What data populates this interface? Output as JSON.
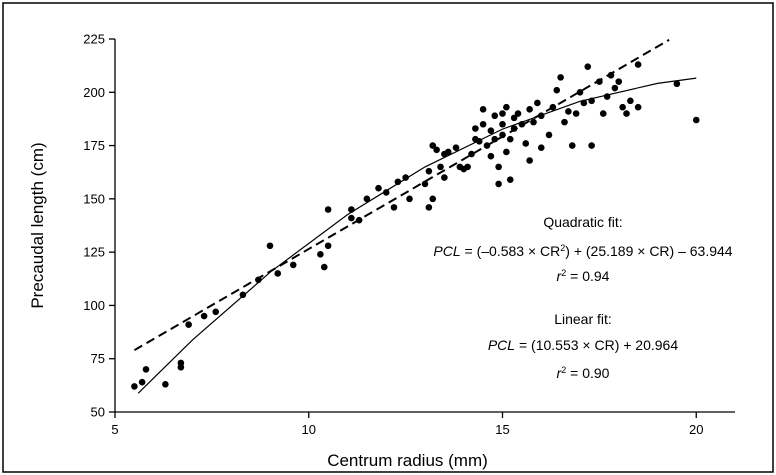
{
  "chart_data": {
    "type": "scatter",
    "x_label": "Centrum radius (mm)",
    "y_label": "Precaudal length (cm)",
    "xlim": [
      5,
      21
    ],
    "xticks": [
      5,
      10,
      15,
      20
    ],
    "ylim": [
      50,
      225
    ],
    "yticks": [
      50,
      75,
      100,
      125,
      150,
      175,
      200,
      225
    ],
    "series": [
      {
        "style": "points",
        "color": "#000000",
        "x": [
          5.5,
          5.7,
          5.8,
          6.3,
          6.7,
          6.7,
          6.9,
          7.3,
          7.6,
          8.3,
          8.7,
          9.0,
          9.2,
          9.6,
          10.3,
          10.4,
          10.5,
          10.5,
          11.1,
          11.1,
          11.3,
          11.5,
          11.8,
          12.0,
          12.2,
          12.3,
          12.5,
          12.6,
          13.0,
          13.1,
          13.1,
          13.2,
          13.2,
          13.3,
          13.4,
          13.5,
          13.5,
          13.6,
          13.8,
          13.9,
          14.0,
          14.1,
          14.2,
          14.3,
          14.3,
          14.4,
          14.5,
          14.5,
          14.6,
          14.7,
          14.7,
          14.8,
          14.8,
          14.9,
          14.9,
          15.0,
          15.0,
          15.0,
          15.1,
          15.1,
          15.2,
          15.2,
          15.3,
          15.3,
          15.4,
          15.5,
          15.6,
          15.7,
          15.7,
          15.8,
          15.9,
          16.0,
          16.0,
          16.2,
          16.3,
          16.4,
          16.5,
          16.6,
          16.7,
          16.8,
          16.9,
          17.0,
          17.1,
          17.2,
          17.3,
          17.3,
          17.5,
          17.6,
          17.7,
          17.8,
          17.9,
          18.0,
          18.1,
          18.2,
          18.3,
          18.5,
          18.5,
          19.5,
          20.0
        ],
        "values": [
          62,
          64,
          70,
          63,
          73,
          71,
          91,
          95,
          97,
          105,
          112,
          128,
          115,
          119,
          124,
          118,
          145,
          128,
          145,
          141,
          140,
          150,
          155,
          153,
          146,
          158,
          160,
          150,
          157,
          163,
          146,
          150,
          175,
          173,
          165,
          160,
          171,
          172,
          174,
          165,
          164,
          165,
          171,
          183,
          178,
          177,
          192,
          185,
          175,
          170,
          182,
          189,
          178,
          165,
          157,
          190,
          185,
          180,
          172,
          193,
          178,
          159,
          188,
          183,
          190,
          185,
          176,
          192,
          168,
          186,
          195,
          189,
          174,
          180,
          193,
          201,
          207,
          186,
          191,
          175,
          190,
          200,
          195,
          212,
          196,
          175,
          205,
          190,
          198,
          208,
          202,
          205,
          193,
          190,
          196,
          213,
          193,
          204,
          187
        ]
      },
      {
        "style": "solid",
        "color": "#000000",
        "x": [
          5.6,
          7,
          9,
          11,
          13,
          15,
          17,
          19,
          20
        ],
        "values": [
          58.84,
          83.81,
          115.54,
          142.6,
          164.99,
          182.72,
          195.78,
          204.19,
          206.64
        ]
      },
      {
        "style": "dashed",
        "color": "#000000",
        "x": [
          5.5,
          19.3
        ],
        "values": [
          79.0,
          224.6
        ]
      }
    ],
    "annotations": [
      {
        "y": 227,
        "parts": [
          {
            "text": "Quadratic fit:"
          }
        ]
      },
      {
        "y": 256,
        "parts": [
          {
            "text": "PCL",
            "style": "italic"
          },
          {
            "text": " = (–0.583 × CR"
          },
          {
            "text": "2",
            "style": "sup"
          },
          {
            "text": ") + (25.189 × CR) – 63.944"
          }
        ]
      },
      {
        "y": 281,
        "parts": [
          {
            "text": "r",
            "style": "italic"
          },
          {
            "text": "2",
            "style": "sup"
          },
          {
            "text": " = 0.94"
          }
        ]
      },
      {
        "y": 324,
        "parts": [
          {
            "text": "Linear fit:"
          }
        ]
      },
      {
        "y": 350,
        "parts": [
          {
            "text": "PCL",
            "style": "italic"
          },
          {
            "text": " = (10.553 × CR) + 20.964"
          }
        ]
      },
      {
        "y": 378,
        "parts": [
          {
            "text": "r",
            "style": "italic"
          },
          {
            "text": "2",
            "style": "sup"
          },
          {
            "text": " = 0.90"
          }
        ]
      }
    ]
  }
}
